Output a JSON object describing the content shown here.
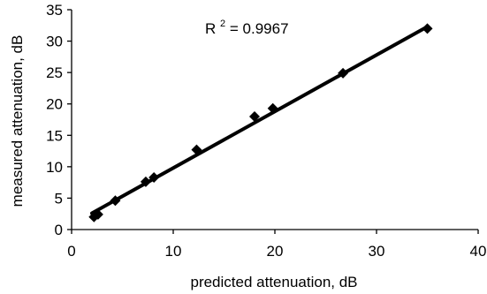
{
  "chart_data": {
    "type": "scatter",
    "title": "",
    "xlabel": "predicted attenuation, dB",
    "ylabel": "measured attenuation, dB",
    "xlim": [
      0,
      40
    ],
    "ylim": [
      0,
      35
    ],
    "x_ticks": [
      0,
      10,
      20,
      30,
      40
    ],
    "y_ticks": [
      0,
      5,
      10,
      15,
      20,
      25,
      30,
      35
    ],
    "grid": false,
    "legend": "none",
    "marker": "diamond",
    "marker_color": "#000000",
    "series": [
      {
        "x": [
          2.2,
          2.6,
          4.3,
          7.3,
          8.1,
          12.3,
          18.0,
          19.8,
          26.7,
          35.0
        ],
        "y": [
          2.0,
          2.4,
          4.6,
          7.6,
          8.3,
          12.7,
          18.0,
          19.3,
          24.9,
          32.0
        ]
      }
    ],
    "trendline": {
      "type": "linear",
      "x_range": [
        2.0,
        35.0
      ],
      "y_range": [
        2.6,
        32.3
      ],
      "stroke": "#000000"
    },
    "annotation": {
      "r_label": "R",
      "r_superscript": "2",
      "r_value_text": " = 0.9967"
    }
  }
}
